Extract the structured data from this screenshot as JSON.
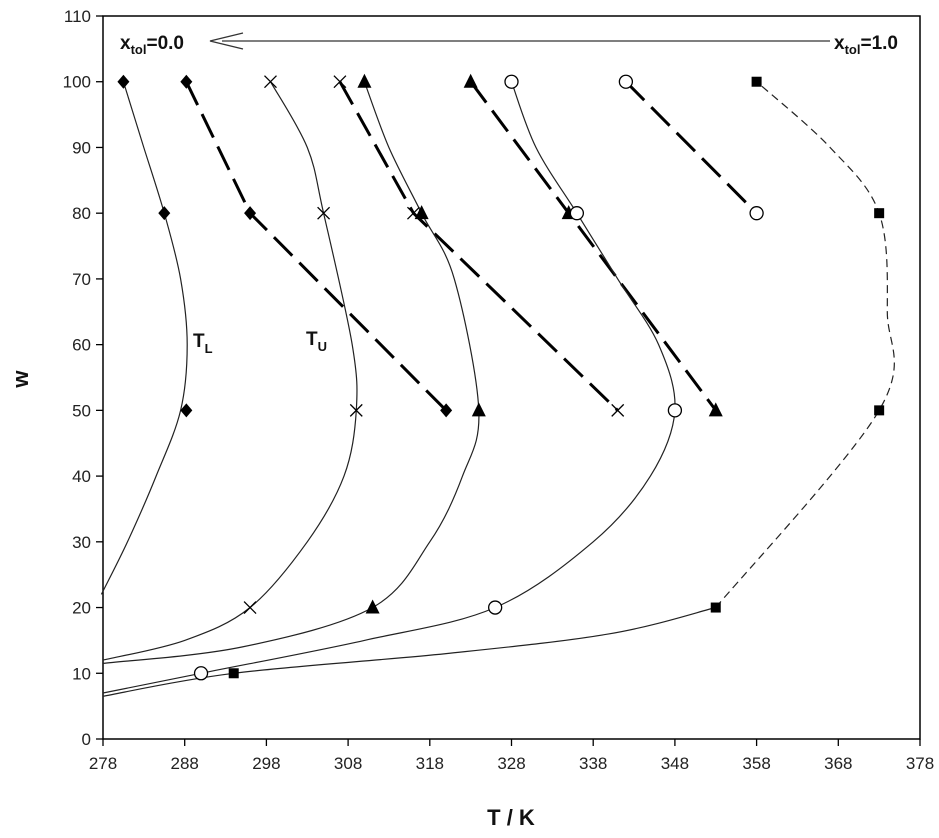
{
  "chart_data": {
    "type": "line",
    "xlabel": "T / K",
    "ylabel": "w",
    "xlim": [
      278,
      378
    ],
    "ylim": [
      0,
      110
    ],
    "xticks": [
      278,
      288,
      298,
      308,
      318,
      328,
      338,
      348,
      358,
      368,
      378
    ],
    "yticks": [
      0,
      10,
      20,
      30,
      40,
      50,
      60,
      70,
      80,
      90,
      100,
      110
    ],
    "grid": false,
    "annotations": {
      "xtol_left": {
        "main": "x",
        "sub": "tol",
        "value": "=0.0"
      },
      "xtol_right": {
        "main": "x",
        "sub": "tol",
        "value": "=1.0"
      },
      "TL": {
        "main": "T",
        "sub": "L"
      },
      "TU": {
        "main": "T",
        "sub": "U"
      }
    },
    "series": [
      {
        "marker": "diamond",
        "curve": "solid",
        "curve_points": [
          [
            277.8,
            22
          ],
          [
            281,
            30
          ],
          [
            284.5,
            40
          ],
          [
            287.5,
            50
          ],
          [
            288.3,
            60
          ],
          [
            287.5,
            70
          ],
          [
            285.5,
            80
          ],
          [
            283,
            90
          ],
          [
            280.5,
            100
          ]
        ],
        "markers": [
          [
            280.5,
            100
          ],
          [
            285.5,
            80
          ],
          [
            288.2,
            50
          ]
        ],
        "dashed": [
          [
            288.2,
            100
          ],
          [
            296,
            80
          ],
          [
            320,
            50
          ]
        ]
      },
      {
        "marker": "x",
        "curve": "solid",
        "curve_points": [
          [
            278,
            12
          ],
          [
            288,
            15
          ],
          [
            296,
            20
          ],
          [
            303,
            30
          ],
          [
            307.5,
            40
          ],
          [
            309,
            50
          ],
          [
            308.5,
            60
          ],
          [
            305,
            80
          ],
          [
            303,
            90
          ],
          [
            298.5,
            100
          ]
        ],
        "markers": [
          [
            296,
            20
          ],
          [
            309,
            50
          ],
          [
            305,
            80
          ],
          [
            298.5,
            100
          ]
        ],
        "dashed": [
          [
            307,
            100
          ],
          [
            316,
            80
          ],
          [
            341,
            50
          ]
        ]
      },
      {
        "marker": "triangle",
        "curve": "solid",
        "curve_points": [
          [
            278,
            11.5
          ],
          [
            295,
            14
          ],
          [
            311,
            20
          ],
          [
            318,
            30
          ],
          [
            322,
            40
          ],
          [
            324,
            50
          ],
          [
            321,
            70
          ],
          [
            317,
            80
          ],
          [
            313,
            90
          ],
          [
            310,
            100
          ]
        ],
        "markers": [
          [
            311,
            20
          ],
          [
            324,
            50
          ],
          [
            317,
            80
          ],
          [
            310,
            100
          ]
        ],
        "dashed": [
          [
            323,
            100
          ],
          [
            335,
            80
          ],
          [
            353,
            50
          ]
        ]
      },
      {
        "marker": "circle",
        "curve": "solid",
        "curve_points": [
          [
            278,
            7
          ],
          [
            290,
            10
          ],
          [
            310,
            15
          ],
          [
            326,
            20
          ],
          [
            338,
            30
          ],
          [
            345,
            40
          ],
          [
            348,
            50
          ],
          [
            346,
            60
          ],
          [
            341,
            70
          ],
          [
            336,
            80
          ],
          [
            331,
            90
          ],
          [
            328,
            100
          ]
        ],
        "markers": [
          [
            290,
            10
          ],
          [
            326,
            20
          ],
          [
            348,
            50
          ],
          [
            336,
            80
          ],
          [
            328,
            100
          ]
        ],
        "dashed": [
          [
            342,
            100
          ],
          [
            358,
            80
          ]
        ]
      },
      {
        "marker": "square",
        "curve": "solid",
        "curve_points": [
          [
            278,
            6.5
          ],
          [
            294,
            10
          ],
          [
            320,
            13
          ],
          [
            340,
            16
          ],
          [
            353,
            20
          ]
        ],
        "markers": [
          [
            294,
            10
          ],
          [
            353,
            20
          ],
          [
            373,
            50
          ],
          [
            373,
            80
          ],
          [
            358,
            100
          ]
        ],
        "dashed_fine": [
          [
            353,
            20
          ],
          [
            373,
            50
          ],
          [
            374,
            65
          ],
          [
            373,
            80
          ],
          [
            367,
            90
          ],
          [
            358,
            100
          ]
        ]
      }
    ]
  }
}
